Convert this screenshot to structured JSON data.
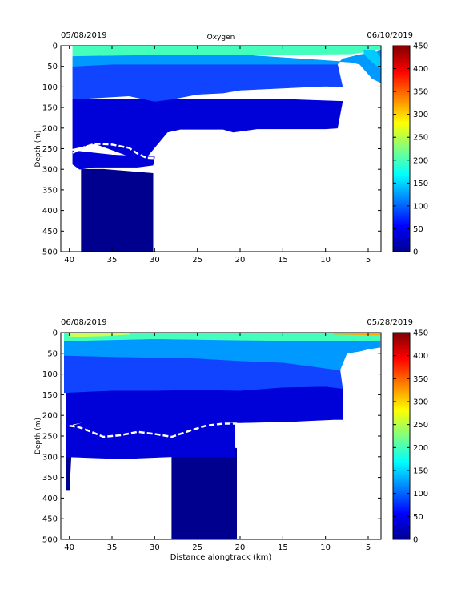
{
  "chart_data": [
    {
      "type": "heatmap",
      "title": "Oxygen",
      "date_left": "05/08/2019",
      "date_right": "06/10/2019",
      "xlabel": "",
      "ylabel": "Depth (m)",
      "x_reversed": true,
      "y_reversed": true,
      "xlim": [
        41,
        3.5
      ],
      "ylim": [
        0,
        500
      ],
      "x_ticks": [
        40,
        35,
        30,
        25,
        20,
        15,
        10,
        5
      ],
      "y_ticks": [
        0,
        50,
        100,
        150,
        200,
        250,
        300,
        350,
        400,
        450,
        500
      ],
      "colorbar": {
        "min": 0,
        "max": 450,
        "ticks": [
          0,
          50,
          100,
          150,
          200,
          250,
          300,
          350,
          400,
          450
        ],
        "colormap": "jet"
      },
      "bands": [
        {
          "value": 30,
          "color": "#00008f",
          "polygon": [
            [
              38.6,
              300
            ],
            [
              38.6,
              500
            ],
            [
              30.2,
              500
            ],
            [
              30.2,
              310
            ],
            [
              36,
              300
            ]
          ]
        },
        {
          "value": 45,
          "color": "#0000d8",
          "polygon": [
            [
              39.6,
              255
            ],
            [
              39.6,
              288
            ],
            [
              38.8,
              300
            ],
            [
              37,
              295
            ],
            [
              32,
              295
            ],
            [
              30.2,
              290
            ],
            [
              30,
              270
            ],
            [
              35,
              265
            ],
            [
              39,
              256
            ]
          ]
        },
        {
          "value": 45,
          "color": "#0000d8",
          "polygon": [
            [
              39.6,
              130
            ],
            [
              39.6,
              250
            ],
            [
              38.5,
              245
            ],
            [
              37,
              238
            ],
            [
              33,
              268
            ],
            [
              31,
              272
            ],
            [
              28.5,
              210
            ],
            [
              27,
              203
            ],
            [
              22,
              203
            ],
            [
              20.8,
              210
            ],
            [
              18,
              202
            ],
            [
              10,
              202
            ],
            [
              8.6,
              200
            ],
            [
              8,
              135
            ],
            [
              15,
              130
            ],
            [
              30,
              130
            ]
          ]
        },
        {
          "value": 75,
          "color": "#1144ff",
          "polygon": [
            [
              39.6,
              50
            ],
            [
              39.6,
              130
            ],
            [
              33,
              122
            ],
            [
              30,
              135
            ],
            [
              28,
              130
            ],
            [
              25,
              118
            ],
            [
              22,
              115
            ],
            [
              20,
              108
            ],
            [
              15,
              103
            ],
            [
              10,
              98
            ],
            [
              8,
              100
            ],
            [
              8.6,
              45
            ],
            [
              15,
              45
            ],
            [
              25,
              45
            ],
            [
              35,
              45
            ]
          ]
        },
        {
          "value": 120,
          "color": "#0099ff",
          "polygon": [
            [
              39.6,
              25
            ],
            [
              39.6,
              50
            ],
            [
              35,
              45
            ],
            [
              25,
              45
            ],
            [
              15,
              45
            ],
            [
              8.6,
              45
            ],
            [
              8,
              32
            ],
            [
              6,
              22
            ],
            [
              4,
              15
            ],
            [
              3.5,
              10
            ],
            [
              3.5,
              90
            ],
            [
              4.5,
              80
            ],
            [
              6,
              45
            ],
            [
              7,
              40
            ],
            [
              20,
              22
            ],
            [
              30,
              22
            ]
          ]
        },
        {
          "value": 180,
          "color": "#44ffbb",
          "polygon": [
            [
              39.6,
              0
            ],
            [
              39.6,
              25
            ],
            [
              30,
              22
            ],
            [
              20,
              22
            ],
            [
              7,
              20
            ],
            [
              5,
              14
            ],
            [
              4,
              10
            ],
            [
              3.5,
              8
            ],
            [
              3.5,
              0
            ]
          ]
        },
        {
          "value": 150,
          "color": "#00ccff",
          "polygon": [
            [
              5.5,
              10
            ],
            [
              4.2,
              12
            ],
            [
              3.6,
              28
            ],
            [
              3.6,
              55
            ],
            [
              4.5,
              40
            ],
            [
              5.5,
              20
            ]
          ]
        }
      ],
      "contour_250": [
        [
          39.6,
          260
        ],
        [
          38.5,
          248
        ],
        [
          37,
          238
        ],
        [
          35,
          240
        ],
        [
          33,
          248
        ],
        [
          32,
          262
        ],
        [
          31,
          272
        ],
        [
          30,
          273
        ]
      ]
    },
    {
      "type": "heatmap",
      "title": "",
      "date_left": "06/08/2019",
      "date_right": "05/28/2019",
      "xlabel": "Distance alongtrack (km)",
      "ylabel": "Depth (m)",
      "x_reversed": true,
      "y_reversed": true,
      "xlim": [
        41,
        3.5
      ],
      "ylim": [
        0,
        500
      ],
      "x_ticks": [
        40,
        35,
        30,
        25,
        20,
        15,
        10,
        5
      ],
      "y_ticks": [
        0,
        50,
        100,
        150,
        200,
        250,
        300,
        350,
        400,
        450,
        500
      ],
      "colorbar": {
        "min": 0,
        "max": 450,
        "ticks": [
          0,
          50,
          100,
          150,
          200,
          250,
          300,
          350,
          400,
          450
        ],
        "colormap": "jet"
      },
      "bands": [
        {
          "value": 30,
          "color": "#00008f",
          "polygon": [
            [
              28,
              300
            ],
            [
              28,
              500
            ],
            [
              20.4,
              500
            ],
            [
              20.4,
              280
            ],
            [
              22,
              270
            ],
            [
              24,
              300
            ]
          ]
        },
        {
          "value": 30,
          "color": "#00008f",
          "polygon": [
            [
              40.4,
              290
            ],
            [
              40.4,
              380
            ],
            [
              40,
              380
            ],
            [
              39.8,
              300
            ]
          ]
        },
        {
          "value": 45,
          "color": "#0000d8",
          "polygon": [
            [
              40.4,
              140
            ],
            [
              40.4,
              300
            ],
            [
              34,
              305
            ],
            [
              28,
              300
            ],
            [
              20.6,
              300
            ],
            [
              20.6,
              220
            ],
            [
              28,
              210
            ],
            [
              32,
              210
            ],
            [
              35,
              212
            ],
            [
              38,
              215
            ],
            [
              39.6,
              225
            ]
          ]
        },
        {
          "value": 45,
          "color": "#0000d8",
          "polygon": [
            [
              40.4,
              120
            ],
            [
              39,
              135
            ],
            [
              35,
              140
            ],
            [
              30,
              140
            ],
            [
              25,
              138
            ],
            [
              20,
              140
            ],
            [
              15,
              132
            ],
            [
              10,
              130
            ],
            [
              8,
              135
            ],
            [
              8,
              210
            ],
            [
              9,
              210
            ],
            [
              14,
              215
            ],
            [
              20,
              218
            ],
            [
              30,
              215
            ],
            [
              38,
              215
            ],
            [
              40.4,
              225
            ]
          ]
        },
        {
          "value": 75,
          "color": "#1144ff",
          "polygon": [
            [
              40.6,
              55
            ],
            [
              40.6,
              145
            ],
            [
              35,
              140
            ],
            [
              30,
              140
            ],
            [
              25,
              138
            ],
            [
              20,
              140
            ],
            [
              15,
              132
            ],
            [
              10,
              130
            ],
            [
              8,
              135
            ],
            [
              8.3,
              90
            ],
            [
              9.2,
              88
            ],
            [
              12,
              80
            ],
            [
              15,
              72
            ],
            [
              20,
              68
            ],
            [
              25,
              62
            ],
            [
              30,
              60
            ],
            [
              35,
              58
            ]
          ]
        },
        {
          "value": 120,
          "color": "#0099ff",
          "polygon": [
            [
              40.6,
              20
            ],
            [
              40.6,
              55
            ],
            [
              35,
              58
            ],
            [
              30,
              60
            ],
            [
              25,
              62
            ],
            [
              20,
              68
            ],
            [
              15,
              72
            ],
            [
              12,
              80
            ],
            [
              9.2,
              88
            ],
            [
              8.3,
              90
            ],
            [
              7.5,
              50
            ],
            [
              6,
              45
            ],
            [
              5,
              40
            ],
            [
              3.6,
              35
            ],
            [
              3.6,
              20
            ],
            [
              10,
              20
            ],
            [
              20,
              18
            ],
            [
              30,
              15
            ]
          ]
        },
        {
          "value": 180,
          "color": "#44ffbb",
          "polygon": [
            [
              40.6,
              0
            ],
            [
              40.6,
              20
            ],
            [
              30,
              15
            ],
            [
              20,
              18
            ],
            [
              10,
              20
            ],
            [
              3.6,
              20
            ],
            [
              3.6,
              0
            ]
          ]
        },
        {
          "value": 250,
          "color": "#ccff55",
          "polygon": [
            [
              40,
              0
            ],
            [
              40,
              10
            ],
            [
              36,
              8
            ],
            [
              33,
              4
            ],
            [
              33,
              0
            ]
          ]
        },
        {
          "value": 320,
          "color": "#ffaa00",
          "polygon": [
            [
              9,
              0
            ],
            [
              9,
              4
            ],
            [
              3.6,
              6
            ],
            [
              3.6,
              0
            ]
          ]
        }
      ],
      "contour_250": [
        [
          40,
          225
        ],
        [
          39,
          228
        ],
        [
          38,
          235
        ],
        [
          36,
          252
        ],
        [
          34,
          248
        ],
        [
          32,
          240
        ],
        [
          30,
          245
        ],
        [
          28,
          252
        ],
        [
          26,
          238
        ],
        [
          24,
          225
        ],
        [
          22,
          220
        ],
        [
          20.4,
          220
        ]
      ]
    }
  ]
}
